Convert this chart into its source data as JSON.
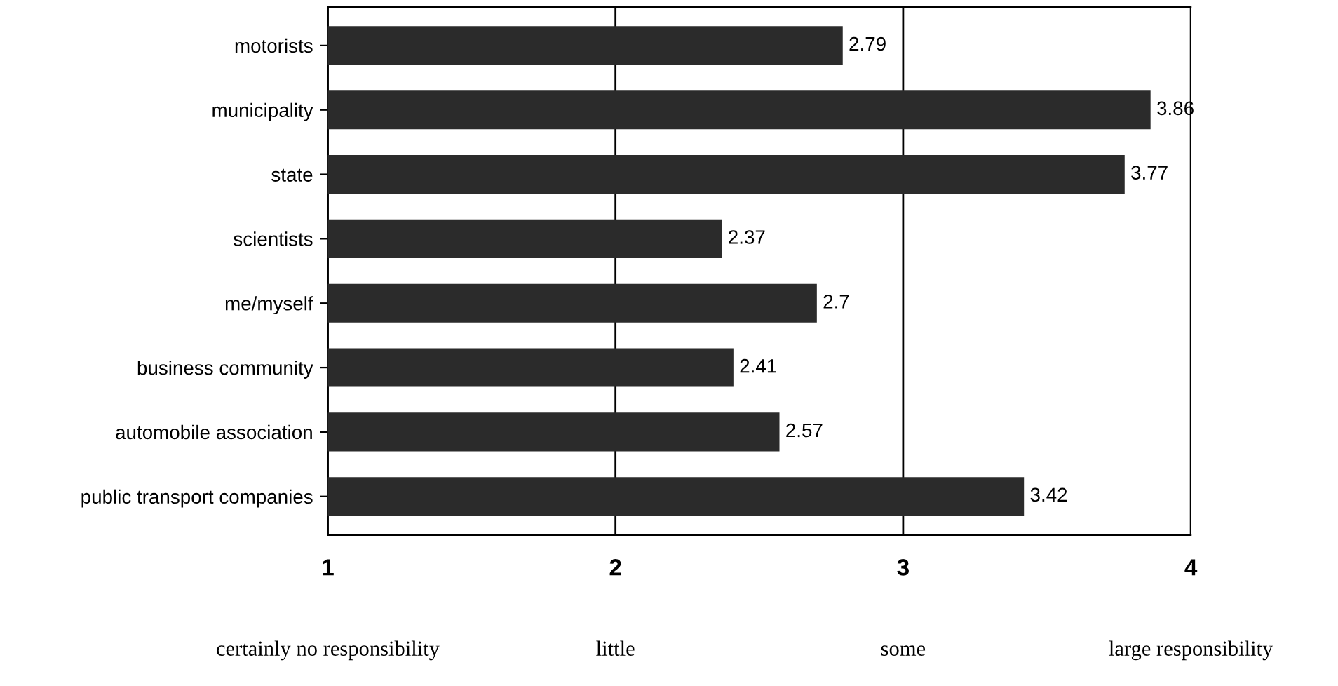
{
  "chart_data": {
    "type": "bar",
    "orientation": "horizontal",
    "categories": [
      "motorists",
      "municipality",
      "state",
      "scientists",
      "me/myself",
      "business community",
      "automobile association",
      "public transport companies"
    ],
    "values": [
      2.79,
      3.86,
      3.77,
      2.37,
      2.7,
      2.41,
      2.57,
      3.42
    ],
    "color": "#2b2b2b",
    "data_labels": true,
    "xlim": [
      1,
      4
    ],
    "xticks": [
      1,
      2,
      3,
      4
    ],
    "grid": "x",
    "legend": false,
    "annotations": [
      "certainly no responsibility",
      "little",
      "some",
      "large responsibility"
    ]
  }
}
